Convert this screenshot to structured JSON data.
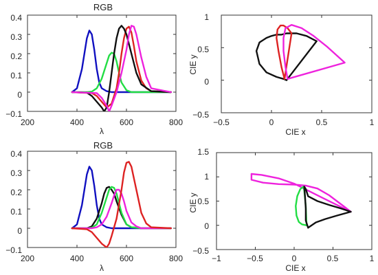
{
  "chart_data": [
    {
      "type": "line",
      "title": "RGB",
      "xlabel": "λ",
      "ylabel": "",
      "xlim": [
        200,
        800
      ],
      "ylim": [
        -0.1,
        0.4
      ],
      "xticks": [
        "200",
        "400",
        "600",
        "800"
      ],
      "yticks": [
        "−0.1",
        "0",
        "0.1",
        "0.2",
        "0.3",
        "0.4"
      ],
      "series": [
        {
          "color": "#1010c0",
          "x": [
            380,
            400,
            420,
            440,
            450,
            460,
            470,
            480,
            490,
            500,
            520,
            540,
            560,
            600,
            700,
            780
          ],
          "y": [
            0,
            0.02,
            0.12,
            0.28,
            0.32,
            0.3,
            0.22,
            0.12,
            0.05,
            0.02,
            0.005,
            0,
            0,
            0,
            0,
            0
          ]
        },
        {
          "color": "#22dd44",
          "x": [
            380,
            440,
            460,
            480,
            500,
            520,
            530,
            540,
            550,
            560,
            570,
            580,
            600,
            620,
            640,
            700,
            780
          ],
          "y": [
            0,
            0,
            0.003,
            0.02,
            0.07,
            0.15,
            0.19,
            0.205,
            0.2,
            0.16,
            0.1,
            0.05,
            0.01,
            0,
            0,
            0,
            0
          ]
        },
        {
          "color": "#dd2222",
          "x": [
            380,
            460,
            480,
            500,
            520,
            540,
            560,
            570,
            580,
            590,
            600,
            610,
            620,
            630,
            640,
            660,
            680,
            700,
            780
          ],
          "y": [
            0,
            -0.005,
            -0.02,
            -0.05,
            -0.08,
            -0.06,
            0.02,
            0.1,
            0.2,
            0.28,
            0.33,
            0.34,
            0.31,
            0.24,
            0.16,
            0.06,
            0.02,
            0.005,
            0
          ]
        },
        {
          "color": "#111111",
          "x": [
            380,
            440,
            460,
            480,
            500,
            510,
            520,
            530,
            540,
            550,
            560,
            570,
            580,
            590,
            600,
            620,
            640,
            660,
            700,
            780
          ],
          "y": [
            0,
            -0.003,
            -0.02,
            -0.05,
            -0.08,
            -0.1,
            -0.08,
            0.0,
            0.1,
            0.2,
            0.28,
            0.33,
            0.345,
            0.33,
            0.3,
            0.2,
            0.1,
            0.04,
            0.005,
            0
          ]
        },
        {
          "color": "#ee22dd",
          "x": [
            380,
            480,
            500,
            520,
            530,
            540,
            560,
            580,
            600,
            610,
            620,
            630,
            640,
            660,
            680,
            700,
            780
          ],
          "y": [
            0,
            -0.005,
            -0.03,
            -0.07,
            -0.1,
            -0.07,
            0.0,
            0.1,
            0.22,
            0.3,
            0.345,
            0.34,
            0.3,
            0.18,
            0.08,
            0.02,
            0
          ]
        }
      ]
    },
    {
      "type": "line",
      "title": "",
      "xlabel": "CIE x",
      "ylabel": "CIE y",
      "xlim": [
        -0.5,
        1
      ],
      "ylim": [
        -0.5,
        1
      ],
      "xticks": [
        "−0.5",
        "0",
        "0.5",
        "1"
      ],
      "yticks": [
        "−0.5",
        "0",
        "0.5",
        "1"
      ],
      "series": [
        {
          "color": "#111111",
          "x": [
            0.15,
            0.12,
            0.05,
            -0.05,
            -0.12,
            -0.15,
            -0.12,
            -0.05,
            0.0,
            0.05,
            0.1,
            0.15,
            0.25,
            0.35,
            0.45,
            0.15
          ],
          "y": [
            0.0,
            0.02,
            0.05,
            0.12,
            0.25,
            0.45,
            0.58,
            0.65,
            0.68,
            0.7,
            0.7,
            0.72,
            0.72,
            0.68,
            0.6,
            0.0
          ]
        },
        {
          "color": "#dd2222",
          "x": [
            0.13,
            0.1,
            0.07,
            0.05,
            0.06,
            0.09,
            0.12,
            0.16,
            0.2,
            0.13
          ],
          "y": [
            0.02,
            0.2,
            0.45,
            0.65,
            0.78,
            0.84,
            0.84,
            0.8,
            0.72,
            0.02
          ]
        },
        {
          "color": "#ee22dd",
          "x": [
            0.16,
            0.14,
            0.12,
            0.12,
            0.14,
            0.2,
            0.3,
            0.42,
            0.55,
            0.73,
            0.16
          ],
          "y": [
            0.02,
            0.2,
            0.45,
            0.65,
            0.8,
            0.85,
            0.8,
            0.68,
            0.52,
            0.27,
            0.02
          ]
        }
      ]
    },
    {
      "type": "line",
      "title": "RGB",
      "xlabel": "λ",
      "ylabel": "",
      "xlim": [
        200,
        800
      ],
      "ylim": [
        -0.1,
        0.4
      ],
      "xticks": [
        "200",
        "400",
        "600",
        "800"
      ],
      "yticks": [
        "−0.1",
        "0",
        "0.1",
        "0.2",
        "0.3",
        "0.4"
      ],
      "series": [
        {
          "color": "#1010c0",
          "x": [
            380,
            400,
            420,
            440,
            450,
            460,
            470,
            480,
            490,
            500,
            520,
            540,
            560,
            600,
            700,
            780
          ],
          "y": [
            0,
            0.02,
            0.12,
            0.28,
            0.32,
            0.3,
            0.22,
            0.12,
            0.05,
            0.02,
            0.005,
            0,
            0,
            0,
            0,
            0
          ]
        },
        {
          "color": "#111111",
          "x": [
            380,
            440,
            460,
            480,
            500,
            510,
            520,
            530,
            540,
            550,
            560,
            580,
            600,
            620,
            660,
            700,
            780
          ],
          "y": [
            0,
            0,
            0.01,
            0.05,
            0.13,
            0.18,
            0.21,
            0.215,
            0.2,
            0.18,
            0.14,
            0.07,
            0.02,
            0.005,
            0,
            0,
            0
          ]
        },
        {
          "color": "#22dd44",
          "x": [
            380,
            440,
            460,
            480,
            500,
            520,
            530,
            540,
            550,
            560,
            570,
            580,
            600,
            620,
            660,
            700,
            780
          ],
          "y": [
            0,
            0,
            0.003,
            0.02,
            0.08,
            0.16,
            0.2,
            0.215,
            0.21,
            0.18,
            0.13,
            0.08,
            0.02,
            0.005,
            0,
            0,
            0
          ]
        },
        {
          "color": "#ee22dd",
          "x": [
            380,
            460,
            480,
            500,
            520,
            540,
            550,
            560,
            570,
            580,
            590,
            600,
            620,
            640,
            660,
            700,
            780
          ],
          "y": [
            0,
            0,
            0.005,
            0.02,
            0.06,
            0.13,
            0.17,
            0.2,
            0.2,
            0.18,
            0.14,
            0.09,
            0.03,
            0.01,
            0,
            0,
            0
          ]
        },
        {
          "color": "#dd2222",
          "x": [
            380,
            440,
            460,
            480,
            500,
            510,
            520,
            530,
            540,
            560,
            580,
            590,
            600,
            610,
            620,
            640,
            660,
            680,
            700,
            780
          ],
          "y": [
            0,
            -0.005,
            -0.02,
            -0.05,
            -0.08,
            -0.09,
            -0.1,
            -0.08,
            -0.04,
            0.05,
            0.2,
            0.29,
            0.34,
            0.345,
            0.32,
            0.2,
            0.08,
            0.025,
            0.005,
            0
          ]
        }
      ]
    },
    {
      "type": "line",
      "title": "",
      "xlabel": "CIE x",
      "ylabel": "CIE y",
      "xlim": [
        -1,
        1
      ],
      "ylim": [
        -0.5,
        1.5
      ],
      "xticks": [
        "−1",
        "−0.5",
        "0",
        "0.5",
        "1"
      ],
      "yticks": [
        "−0.5",
        "0",
        "0.5",
        "1",
        "1.5"
      ],
      "series": [
        {
          "color": "#ee22dd",
          "x": [
            0.73,
            0.55,
            0.35,
            0.15,
            0.0,
            -0.2,
            -0.42,
            -0.55,
            -0.55,
            -0.4,
            -0.2,
            0.0,
            0.15,
            0.3,
            0.45,
            0.55,
            0.65,
            0.73
          ],
          "y": [
            0.28,
            0.42,
            0.58,
            0.74,
            0.86,
            0.97,
            1.04,
            1.06,
            0.94,
            0.88,
            0.85,
            0.84,
            0.82,
            0.76,
            0.62,
            0.5,
            0.38,
            0.28
          ]
        },
        {
          "color": "#22dd44",
          "x": [
            0.16,
            0.1,
            0.06,
            0.03,
            0.02,
            0.04,
            0.08,
            0.12,
            0.13,
            0.15,
            0.16
          ],
          "y": [
            0.0,
            0.02,
            0.07,
            0.2,
            0.4,
            0.6,
            0.75,
            0.8,
            0.72,
            0.4,
            0.0
          ]
        },
        {
          "color": "#111111",
          "x": [
            0.73,
            0.55,
            0.4,
            0.28,
            0.18,
            0.15,
            0.15,
            0.14,
            0.13,
            0.15,
            0.18,
            0.3,
            0.45,
            0.6,
            0.73
          ],
          "y": [
            0.28,
            0.2,
            0.13,
            0.06,
            -0.05,
            0.1,
            0.35,
            0.6,
            0.8,
            0.75,
            0.6,
            0.5,
            0.42,
            0.35,
            0.28
          ]
        }
      ]
    }
  ]
}
